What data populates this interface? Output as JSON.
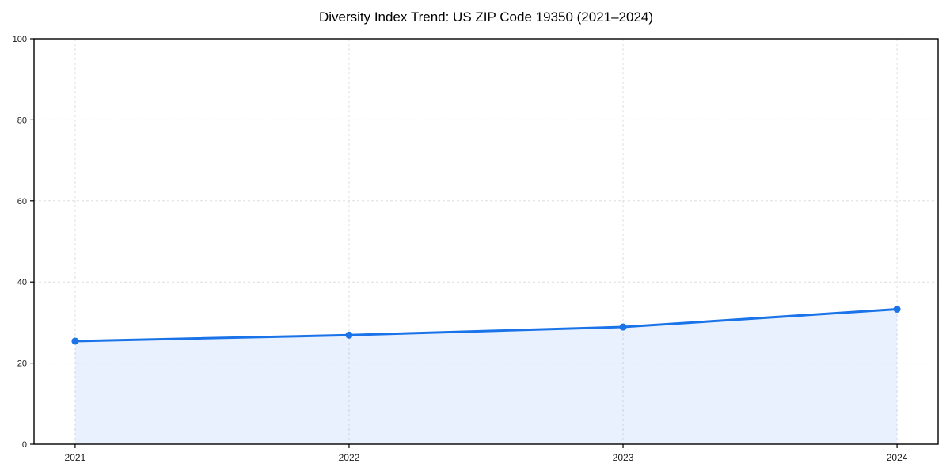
{
  "figure": {
    "background": "#ffffff"
  },
  "chart_data": {
    "type": "area",
    "title": "Diversity Index Trend: US ZIP Code 19350 (2021–2024)",
    "x": [
      2021,
      2022,
      2023,
      2024
    ],
    "series": [
      {
        "name": "Diversity Index",
        "values": [
          25.4,
          26.9,
          28.9,
          33.3
        ]
      }
    ],
    "xtick_labels": [
      "2021",
      "2022",
      "2023",
      "2024"
    ],
    "yticks": [
      0,
      20,
      40,
      60,
      80,
      100
    ],
    "ytick_labels": [
      "0",
      "20",
      "40",
      "60",
      "80",
      "100"
    ],
    "xlim": [
      2020.85,
      2024.15
    ],
    "ylim": [
      0,
      100
    ],
    "xlabel": "",
    "ylabel": "",
    "grid": true,
    "grid_style": "dashed",
    "legend": false,
    "colors": {
      "line": "#1a73e8",
      "marker": "#1a73e8",
      "area_fill": "rgba(26,115,232,0.10)",
      "grid": "#dedede",
      "spine": "#000000",
      "tick_label": "#1a1a1a",
      "title": "#000000"
    }
  }
}
